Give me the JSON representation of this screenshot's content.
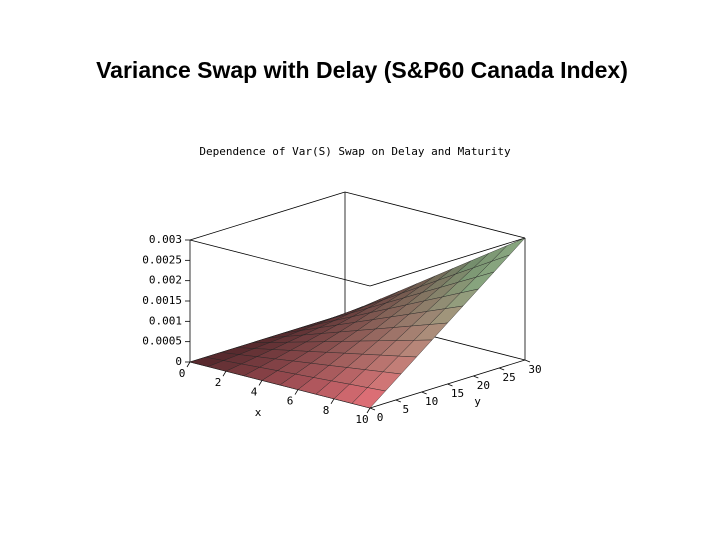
{
  "slide_title": "Variance Swap with Delay (S&P60 Canada Index)",
  "chart_data": {
    "type": "surface",
    "title": "Dependence of Var(S) Swap on Delay and Maturity",
    "xlabel": "x",
    "ylabel": "y",
    "x": [
      0,
      1,
      2,
      3,
      4,
      5,
      6,
      7,
      8,
      9,
      10
    ],
    "y": [
      0,
      3,
      6,
      9,
      12,
      15,
      18,
      21,
      24,
      27,
      30
    ],
    "z": [
      [
        0,
        0,
        0,
        0,
        0,
        0,
        0,
        0,
        0,
        0,
        0
      ],
      [
        0,
        3e-05,
        6e-05,
        9e-05,
        0.00012,
        0.00015,
        0.00018,
        0.00021,
        0.00024,
        0.00027,
        0.0003
      ],
      [
        0,
        6e-05,
        0.00012,
        0.00018,
        0.00024,
        0.0003,
        0.00036,
        0.00042,
        0.00048,
        0.00054,
        0.0006
      ],
      [
        0,
        9e-05,
        0.00018,
        0.00027,
        0.00036,
        0.00045,
        0.00054,
        0.00063,
        0.00072,
        0.00081,
        0.0009
      ],
      [
        0,
        0.00012,
        0.00024,
        0.00036,
        0.00048,
        0.0006,
        0.00072,
        0.00084,
        0.00096,
        0.00108,
        0.0012
      ],
      [
        0,
        0.00015,
        0.0003,
        0.00045,
        0.0006,
        0.00075,
        0.0009,
        0.00105,
        0.0012,
        0.00135,
        0.0015
      ],
      [
        0,
        0.00018,
        0.00036,
        0.00054,
        0.00072,
        0.0009,
        0.00108,
        0.00126,
        0.00144,
        0.00162,
        0.0018
      ],
      [
        0,
        0.00021,
        0.00042,
        0.00063,
        0.00084,
        0.00105,
        0.00126,
        0.00147,
        0.00168,
        0.00189,
        0.0021
      ],
      [
        0,
        0.00024,
        0.00048,
        0.00072,
        0.00096,
        0.0012,
        0.00144,
        0.00168,
        0.00192,
        0.00216,
        0.0024
      ],
      [
        0,
        0.00027,
        0.00054,
        0.00081,
        0.00108,
        0.00135,
        0.00162,
        0.00189,
        0.00216,
        0.00243,
        0.0027
      ],
      [
        0,
        0.0003,
        0.0006,
        0.0009,
        0.0012,
        0.0015,
        0.0018,
        0.0021,
        0.0024,
        0.0027,
        0.003
      ]
    ],
    "xlim": [
      0,
      10
    ],
    "ylim": [
      0,
      30
    ],
    "zlim": [
      0,
      0.003
    ],
    "xticks": [
      0,
      2,
      4,
      6,
      8,
      10
    ],
    "yticks": [
      0,
      5,
      10,
      15,
      20,
      25,
      30
    ],
    "zticks": [
      0,
      0.0005,
      0.001,
      0.0015,
      0.002,
      0.0025,
      0.003
    ]
  }
}
